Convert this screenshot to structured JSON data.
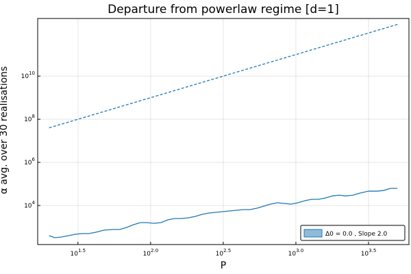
{
  "chart_data": {
    "type": "line",
    "title": "Departure from powerlaw regime [d=1]",
    "xlabel": "P",
    "ylabel": "α avg. over 30 realisations",
    "xscale": "log",
    "yscale": "log",
    "grid": true,
    "legend_position": "lower right",
    "xlim": [
      16.7,
      6000
    ],
    "ylim": [
      155,
      4700000000000.0
    ],
    "xticks": [
      {
        "value": 31.6228,
        "label": "10",
        "exponent": "1.5"
      },
      {
        "value": 100,
        "label": "10",
        "exponent": "2.0"
      },
      {
        "value": 316.228,
        "label": "10",
        "exponent": "2.5"
      },
      {
        "value": 1000,
        "label": "10",
        "exponent": "3.0"
      },
      {
        "value": 3162.28,
        "label": "10",
        "exponent": "3.5"
      }
    ],
    "yticks": [
      {
        "value": 10000,
        "label": "10",
        "exponent": "4"
      },
      {
        "value": 1000000,
        "label": "10",
        "exponent": "6"
      },
      {
        "value": 100000000,
        "label": "10",
        "exponent": "8"
      },
      {
        "value": 10000000000,
        "label": "10",
        "exponent": "10"
      }
    ],
    "series": [
      {
        "name": "Δ0 = 0.0 , Slope 2.0",
        "color": "#1f77b4",
        "dash": false,
        "x": [
          20,
          21.9,
          24.4,
          27.2,
          30.3,
          33.7,
          37.6,
          42.0,
          47.8,
          55.0,
          61.4,
          68.4,
          76.3,
          85.0,
          94.7,
          105.6,
          117.7,
          131.2,
          146.2,
          163,
          181.6,
          202.6,
          225.7,
          251.6,
          280.6,
          312.6,
          348.4,
          389,
          433.5,
          483,
          538,
          600,
          668,
          746,
          832,
          927,
          1033,
          1151,
          1283,
          1432,
          1596,
          1778,
          1982,
          2208,
          2466,
          2748,
          3162,
          3606,
          4018,
          4477,
          5000
        ],
        "values": [
          401,
          322,
          347,
          401,
          464,
          499,
          499,
          578,
          719,
          774,
          774,
          964,
          1291,
          1607,
          1607,
          1495,
          1607,
          2154,
          2494,
          2494,
          2683,
          3107,
          3866,
          4477,
          4820,
          5179,
          5570,
          5998,
          6457,
          6457,
          7466,
          9290,
          11570,
          13400,
          12450,
          11570,
          13400,
          16680,
          19310,
          19310,
          22350,
          27800,
          29930,
          27800,
          29930,
          37260,
          46420,
          46420,
          49900,
          62200,
          62200
        ]
      },
      {
        "color": "#1f77b4",
        "dash": true,
        "x": [
          20,
          5000
        ],
        "values": [
          40000000,
          2500000000000
        ]
      }
    ]
  }
}
